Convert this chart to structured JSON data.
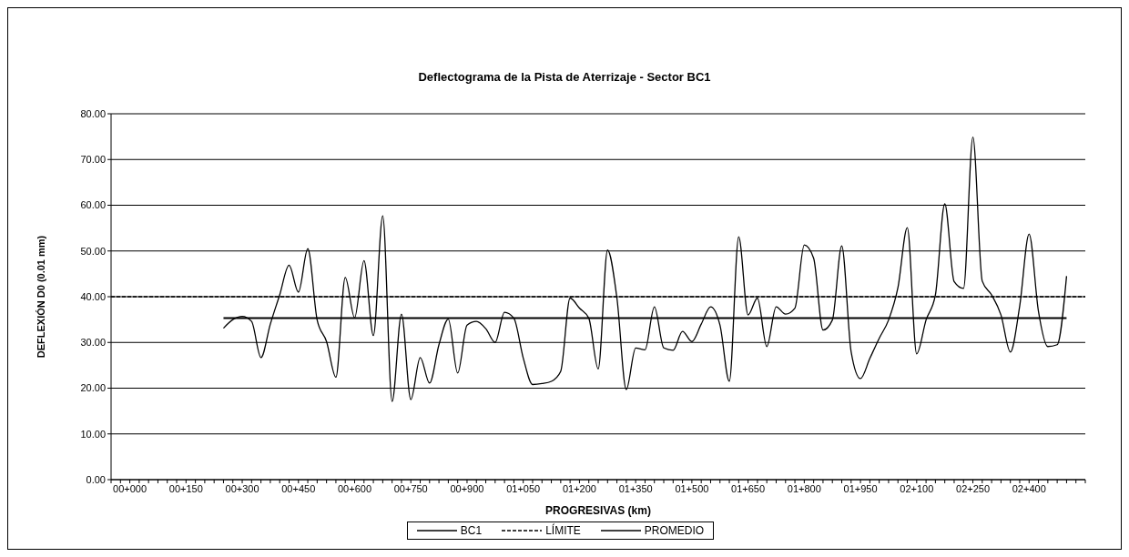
{
  "chart_data": {
    "type": "line",
    "title": "Deflectograma de la Pista de Aterrizaje  - Sector BC1",
    "xlabel": "PROGRESIVAS (km)",
    "ylabel": "DEFLEXIÓN D0 (0.01 mm)",
    "categories": [
      null,
      null,
      "00+000",
      null,
      null,
      null,
      null,
      null,
      "00+150",
      null,
      null,
      null,
      null,
      null,
      "00+300",
      null,
      null,
      null,
      null,
      null,
      "00+450",
      null,
      null,
      null,
      null,
      null,
      "00+600",
      null,
      null,
      null,
      null,
      null,
      "00+750",
      null,
      null,
      null,
      null,
      null,
      "00+900",
      null,
      null,
      null,
      null,
      null,
      "01+050",
      null,
      null,
      null,
      null,
      null,
      "01+200",
      null,
      null,
      null,
      null,
      null,
      "01+350",
      null,
      null,
      null,
      null,
      null,
      "01+500",
      null,
      null,
      null,
      null,
      null,
      "01+650",
      null,
      null,
      null,
      null,
      null,
      "01+800",
      null,
      null,
      null,
      null,
      null,
      "01+950",
      null,
      null,
      null,
      null,
      null,
      "02+100",
      null,
      null,
      null,
      null,
      null,
      "02+250",
      null,
      null,
      null,
      null,
      null,
      "02+400",
      null,
      null,
      null,
      null,
      null,
      null
    ],
    "ylim": [
      0,
      80
    ],
    "yticks": [
      {
        "value": 0,
        "label": "0.00"
      },
      {
        "value": 10,
        "label": "10.00"
      },
      {
        "value": 20,
        "label": "20.00"
      },
      {
        "value": 30,
        "label": "30.00"
      },
      {
        "value": 40,
        "label": "40.00"
      },
      {
        "value": 50,
        "label": "50.00"
      },
      {
        "value": 60,
        "label": "60.00"
      },
      {
        "value": 70,
        "label": "70.00"
      },
      {
        "value": 80,
        "label": "80.00"
      }
    ],
    "grid": "y",
    "legend": "bottom",
    "marker": "none",
    "series": [
      {
        "name": "BC1",
        "color": "#000000",
        "line_style": "solid",
        "values": [
          null,
          null,
          null,
          null,
          null,
          null,
          null,
          null,
          null,
          null,
          null,
          null,
          33.1,
          35.0,
          35.7,
          34.6,
          26.7,
          34.0,
          40.4,
          46.9,
          41.0,
          50.5,
          34.9,
          30.2,
          22.4,
          44.2,
          35.4,
          47.9,
          31.5,
          57.7,
          17.1,
          36.2,
          17.5,
          26.7,
          21.1,
          29.5,
          35.1,
          23.3,
          33.8,
          34.6,
          33.0,
          30.0,
          36.6,
          35.3,
          26.6,
          20.8,
          21.0,
          21.5,
          23.7,
          39.7,
          37.5,
          35.3,
          24.2,
          50.2,
          39.7,
          19.7,
          28.8,
          28.4,
          37.8,
          28.8,
          28.3,
          32.4,
          30.2,
          34.0,
          37.8,
          33.8,
          21.5,
          53.1,
          36.0,
          39.7,
          29.1,
          37.8,
          36.2,
          37.5,
          51.3,
          48.4,
          32.7,
          34.9,
          51.1,
          28.0,
          22.1,
          26.5,
          30.9,
          34.9,
          42.0,
          55.1,
          27.5,
          34.9,
          40.4,
          60.3,
          43.3,
          41.8,
          74.9,
          43.4,
          40.4,
          36.0,
          27.9,
          38.0,
          53.7,
          36.8,
          29.1,
          29.5,
          44.5,
          null,
          null
        ]
      },
      {
        "name": "LÍMITE",
        "color": "#000000",
        "line_style": "dashed",
        "values": [
          40,
          40,
          40,
          40,
          40,
          40,
          40,
          40,
          40,
          40,
          40,
          40,
          40,
          40,
          40,
          40,
          40,
          40,
          40,
          40,
          40,
          40,
          40,
          40,
          40,
          40,
          40,
          40,
          40,
          40,
          40,
          40,
          40,
          40,
          40,
          40,
          40,
          40,
          40,
          40,
          40,
          40,
          40,
          40,
          40,
          40,
          40,
          40,
          40,
          40,
          40,
          40,
          40,
          40,
          40,
          40,
          40,
          40,
          40,
          40,
          40,
          40,
          40,
          40,
          40,
          40,
          40,
          40,
          40,
          40,
          40,
          40,
          40,
          40,
          40,
          40,
          40,
          40,
          40,
          40,
          40,
          40,
          40,
          40,
          40,
          40,
          40,
          40,
          40,
          40,
          40,
          40,
          40,
          40,
          40,
          40,
          40,
          40,
          40,
          40,
          40,
          40,
          40,
          40,
          40
        ]
      },
      {
        "name": "PROMEDIO",
        "color": "#000000",
        "line_style": "solid",
        "values": [
          null,
          null,
          null,
          null,
          null,
          null,
          null,
          null,
          null,
          null,
          null,
          null,
          35.3,
          35.3,
          35.3,
          35.3,
          35.3,
          35.3,
          35.3,
          35.3,
          35.3,
          35.3,
          35.3,
          35.3,
          35.3,
          35.3,
          35.3,
          35.3,
          35.3,
          35.3,
          35.3,
          35.3,
          35.3,
          35.3,
          35.3,
          35.3,
          35.3,
          35.3,
          35.3,
          35.3,
          35.3,
          35.3,
          35.3,
          35.3,
          35.3,
          35.3,
          35.3,
          35.3,
          35.3,
          35.3,
          35.3,
          35.3,
          35.3,
          35.3,
          35.3,
          35.3,
          35.3,
          35.3,
          35.3,
          35.3,
          35.3,
          35.3,
          35.3,
          35.3,
          35.3,
          35.3,
          35.3,
          35.3,
          35.3,
          35.3,
          35.3,
          35.3,
          35.3,
          35.3,
          35.3,
          35.3,
          35.3,
          35.3,
          35.3,
          35.3,
          35.3,
          35.3,
          35.3,
          35.3,
          35.3,
          35.3,
          35.3,
          35.3,
          35.3,
          35.3,
          35.3,
          35.3,
          35.3,
          35.3,
          35.3,
          35.3,
          35.3,
          35.3,
          35.3,
          35.3,
          35.3,
          35.3,
          35.3,
          null,
          null
        ]
      }
    ]
  }
}
